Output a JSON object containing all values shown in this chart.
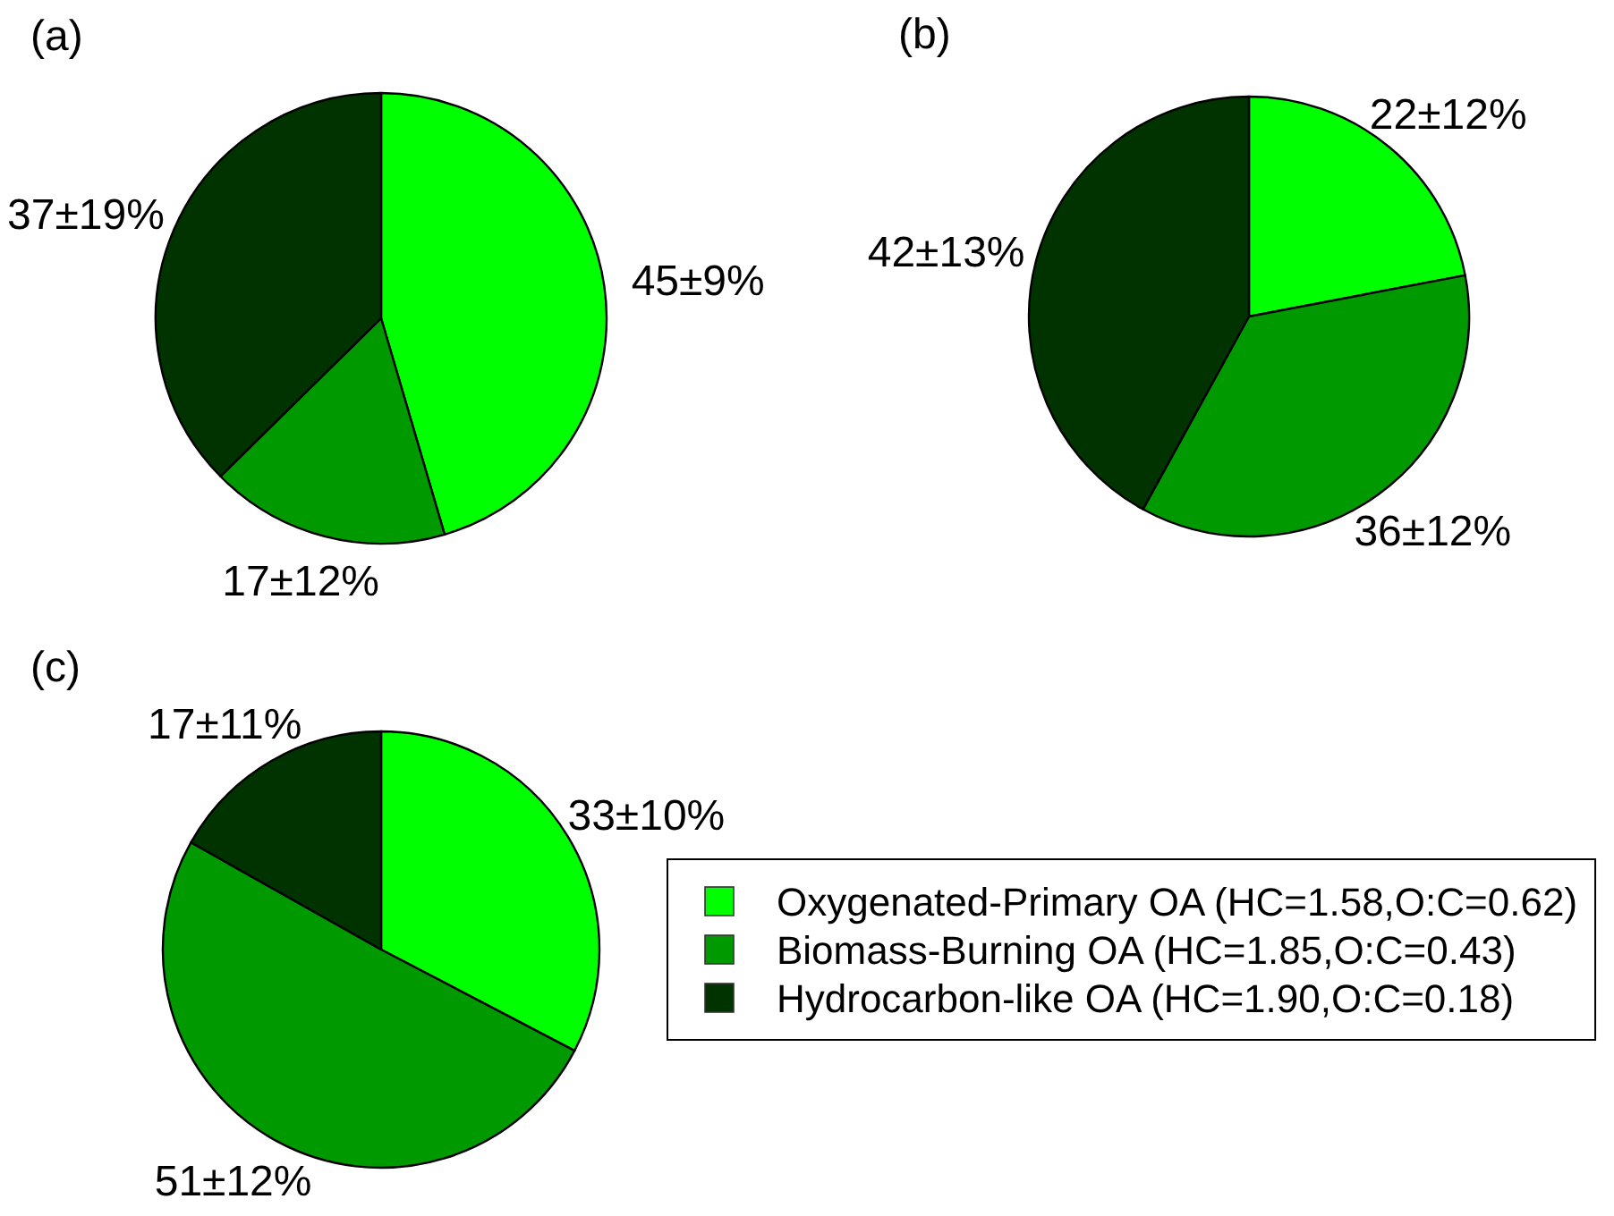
{
  "chart_data": [
    {
      "type": "pie",
      "title": "(a)",
      "categories": [
        null,
        null,
        null
      ],
      "values": [
        45,
        17,
        37
      ],
      "colors": [
        "#00ff00",
        "#009900",
        "#003300"
      ],
      "value_labels": [
        "45±9%",
        "17±12%",
        "37±19%"
      ]
    },
    {
      "type": "pie",
      "title": "(b)",
      "categories": [
        null,
        null,
        null
      ],
      "values": [
        22,
        36,
        42
      ],
      "colors": [
        "#00ff00",
        "#009900",
        "#003300"
      ],
      "value_labels": [
        "22±12%",
        "36±12%",
        "42±13%"
      ]
    },
    {
      "type": "pie",
      "title": "(c)",
      "categories": [
        "Oxygenated-Primary OA (HC=1.58,O:C=0.62)",
        "Biomass-Burning OA (HC=1.85,O:C=0.43)",
        "Hydrocarbon-like OA (HC=1.90,O:C=0.18)"
      ],
      "values": [
        33,
        51,
        17
      ],
      "colors": [
        "#00ff00",
        "#009900",
        "#003300"
      ],
      "value_labels": [
        "33±10%",
        "51±12%",
        "17±11%"
      ],
      "legend": "right"
    }
  ]
}
